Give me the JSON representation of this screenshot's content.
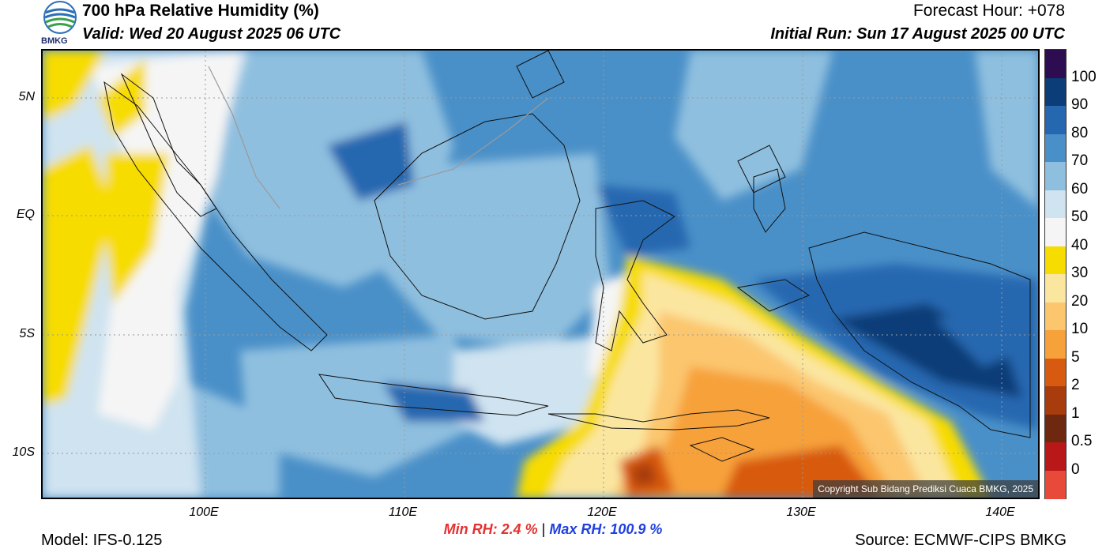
{
  "header": {
    "title": "700 hPa Relative Humidity (%)",
    "valid": "Valid: Wed 20 August 2025 06 UTC",
    "forecast_hour": "Forecast Hour: +078",
    "initial_run": "Initial Run: Sun 17 August 2025 00 UTC"
  },
  "logo": {
    "text": "BMKG",
    "icon": "bmkg-logo"
  },
  "axes": {
    "lat_labels": [
      "5N",
      "EQ",
      "5S",
      "10S"
    ],
    "lon_labels": [
      "100E",
      "110E",
      "120E",
      "130E",
      "140E"
    ]
  },
  "colorbar": {
    "labels": [
      "100",
      "90",
      "80",
      "70",
      "60",
      "50",
      "40",
      "30",
      "20",
      "10",
      "5",
      "2",
      "1",
      "0.5",
      "0"
    ],
    "colors": [
      "#2e0c52",
      "#0b3d78",
      "#2668b0",
      "#4a90c8",
      "#8fbfdf",
      "#cfe3f0",
      "#f5f5f5",
      "#f7dc00",
      "#fbe6a0",
      "#fbc66e",
      "#f7a13a",
      "#d85a10",
      "#a83c0c",
      "#6e2810",
      "#b81818",
      "#e84a3a"
    ]
  },
  "stats": {
    "min": "Min RH:   2.4 %",
    "separator": "|",
    "max": "Max RH: 100.9 %"
  },
  "footer": {
    "model": "Model: IFS-0.125",
    "source": "Source: ECMWF-CIPS BMKG",
    "copyright": "Copyright Sub Bidang Prediksi Cuaca BMKG, 2025"
  }
}
